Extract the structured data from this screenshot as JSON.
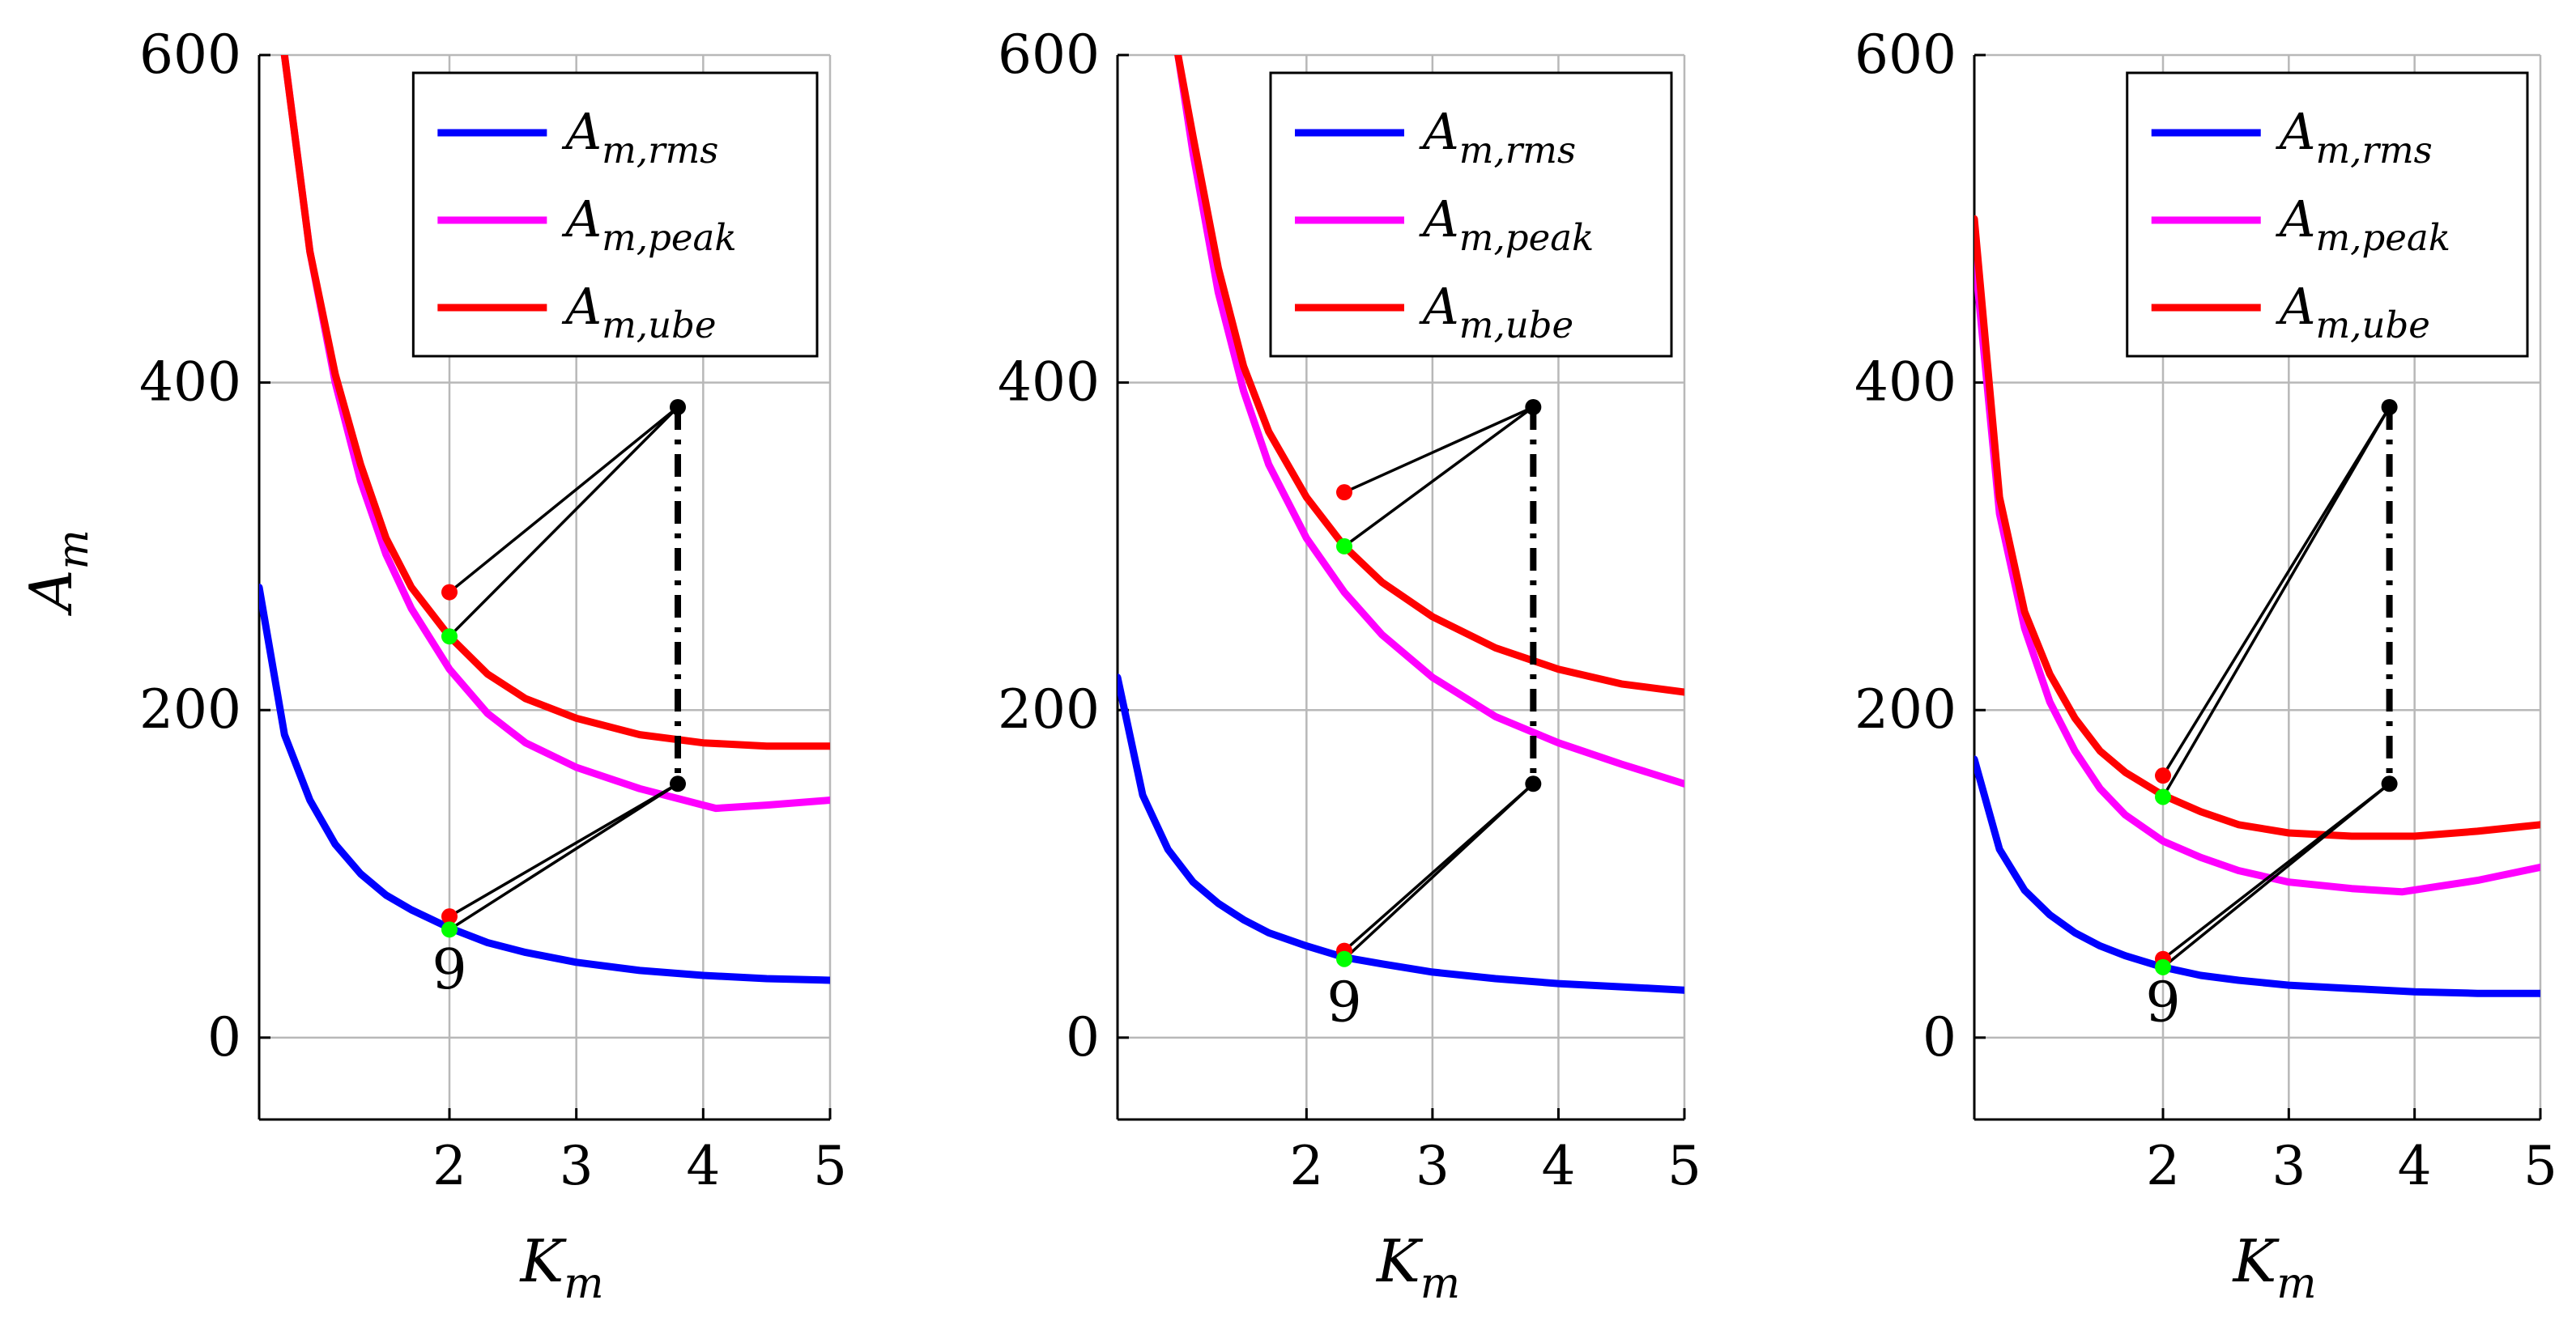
{
  "chart_data": [
    {
      "type": "line",
      "ylabel": "A_m",
      "xlabel": "K_m",
      "xlim": [
        0.5,
        5
      ],
      "ylim": [
        -50,
        600
      ],
      "xticks": [
        2,
        3,
        4,
        5
      ],
      "yticks": [
        0,
        200,
        400,
        600
      ],
      "legend_position": "top-right",
      "series": [
        {
          "name": "A_m,rms",
          "color": "#0000ff",
          "x": [
            0.5,
            0.7,
            0.9,
            1.1,
            1.3,
            1.5,
            1.7,
            2.0,
            2.3,
            2.6,
            3.0,
            3.5,
            4.0,
            4.5,
            5.0
          ],
          "y": [
            275,
            185,
            145,
            118,
            100,
            87,
            78,
            67,
            58,
            52,
            46,
            41,
            38,
            36,
            35
          ]
        },
        {
          "name": "A_m,peak",
          "color": "#ff00ff",
          "x": [
            0.7,
            0.9,
            1.1,
            1.3,
            1.5,
            1.7,
            2.0,
            2.3,
            2.6,
            3.0,
            3.5,
            4.0,
            4.1,
            4.5,
            5.0
          ],
          "y": [
            600,
            480,
            400,
            340,
            295,
            262,
            225,
            198,
            180,
            165,
            152,
            142,
            140,
            142,
            145
          ]
        },
        {
          "name": "A_m,ube",
          "color": "#ff0000",
          "x": [
            0.7,
            0.9,
            1.1,
            1.3,
            1.5,
            1.7,
            2.0,
            2.3,
            2.6,
            3.0,
            3.5,
            4.0,
            4.5,
            5.0
          ],
          "y": [
            600,
            480,
            405,
            350,
            305,
            275,
            245,
            222,
            207,
            195,
            185,
            180,
            178,
            178
          ]
        }
      ],
      "markers": [
        {
          "x": 2.0,
          "y": 272,
          "color": "#ff0000"
        },
        {
          "x": 2.0,
          "y": 245,
          "color": "#00ff00"
        },
        {
          "x": 2.0,
          "y": 74,
          "color": "#ff0000"
        },
        {
          "x": 2.0,
          "y": 66,
          "color": "#00ff00"
        },
        {
          "x": 3.8,
          "y": 385,
          "color": "#000000"
        },
        {
          "x": 3.8,
          "y": 155,
          "color": "#000000"
        }
      ],
      "connectors": [
        {
          "from": [
            2.0,
            272
          ],
          "to": [
            3.8,
            385
          ]
        },
        {
          "from": [
            2.0,
            245
          ],
          "to": [
            3.8,
            385
          ]
        },
        {
          "from": [
            2.0,
            74
          ],
          "to": [
            3.8,
            155
          ]
        },
        {
          "from": [
            2.0,
            66
          ],
          "to": [
            3.8,
            155
          ]
        }
      ],
      "dashed_link": {
        "x": 3.8,
        "y1": 385,
        "y2": 155
      },
      "annotation": {
        "text": "9",
        "x": 2.0,
        "y": 30
      }
    },
    {
      "type": "line",
      "ylabel": "",
      "xlabel": "K_m",
      "xlim": [
        0.5,
        5
      ],
      "ylim": [
        -50,
        600
      ],
      "xticks": [
        2,
        3,
        4,
        5
      ],
      "yticks": [
        0,
        200,
        400,
        600
      ],
      "legend_position": "top-right",
      "series": [
        {
          "name": "A_m,rms",
          "color": "#0000ff",
          "x": [
            0.5,
            0.7,
            0.9,
            1.1,
            1.3,
            1.5,
            1.7,
            2.0,
            2.3,
            2.6,
            3.0,
            3.5,
            4.0,
            4.5,
            5.0
          ],
          "y": [
            220,
            148,
            115,
            95,
            82,
            72,
            64,
            56,
            49,
            45,
            40,
            36,
            33,
            31,
            29
          ]
        },
        {
          "name": "A_m,peak",
          "color": "#ff00ff",
          "x": [
            0.98,
            1.1,
            1.3,
            1.5,
            1.7,
            2.0,
            2.3,
            2.6,
            3.0,
            3.5,
            4.0,
            4.5,
            5.0
          ],
          "y": [
            600,
            540,
            455,
            395,
            350,
            305,
            272,
            246,
            220,
            196,
            180,
            167,
            155
          ]
        },
        {
          "name": "A_m,ube",
          "color": "#ff0000",
          "x": [
            0.98,
            1.1,
            1.3,
            1.5,
            1.7,
            2.0,
            2.3,
            2.6,
            3.0,
            3.5,
            4.0,
            4.5,
            5.0
          ],
          "y": [
            600,
            550,
            470,
            410,
            370,
            330,
            300,
            278,
            257,
            238,
            225,
            216,
            211
          ]
        }
      ],
      "markers": [
        {
          "x": 2.3,
          "y": 333,
          "color": "#ff0000"
        },
        {
          "x": 2.3,
          "y": 300,
          "color": "#00ff00"
        },
        {
          "x": 2.3,
          "y": 53,
          "color": "#ff0000"
        },
        {
          "x": 2.3,
          "y": 48,
          "color": "#00ff00"
        },
        {
          "x": 3.8,
          "y": 385,
          "color": "#000000"
        },
        {
          "x": 3.8,
          "y": 155,
          "color": "#000000"
        }
      ],
      "connectors": [
        {
          "from": [
            2.3,
            333
          ],
          "to": [
            3.8,
            385
          ]
        },
        {
          "from": [
            2.3,
            300
          ],
          "to": [
            3.8,
            385
          ]
        },
        {
          "from": [
            2.3,
            53
          ],
          "to": [
            3.8,
            155
          ]
        },
        {
          "from": [
            2.3,
            48
          ],
          "to": [
            3.8,
            155
          ]
        }
      ],
      "dashed_link": {
        "x": 3.8,
        "y1": 385,
        "y2": 155
      },
      "annotation": {
        "text": "9",
        "x": 2.3,
        "y": 10
      }
    },
    {
      "type": "line",
      "ylabel": "",
      "xlabel": "K_m",
      "xlim": [
        0.5,
        5
      ],
      "ylim": [
        -50,
        600
      ],
      "xticks": [
        2,
        3,
        4,
        5
      ],
      "yticks": [
        0,
        200,
        400,
        600
      ],
      "legend_position": "top-right",
      "series": [
        {
          "name": "A_m,rms",
          "color": "#0000ff",
          "x": [
            0.5,
            0.7,
            0.9,
            1.1,
            1.3,
            1.5,
            1.7,
            2.0,
            2.3,
            2.6,
            3.0,
            3.5,
            4.0,
            4.5,
            5.0
          ],
          "y": [
            170,
            115,
            90,
            75,
            64,
            56,
            50,
            43,
            38,
            35,
            32,
            30,
            28,
            27,
            27
          ]
        },
        {
          "name": "A_m,peak",
          "color": "#ff00ff",
          "x": [
            0.5,
            0.7,
            0.9,
            1.1,
            1.3,
            1.5,
            1.7,
            2.0,
            2.3,
            2.6,
            3.0,
            3.5,
            3.9,
            4.5,
            5.0
          ],
          "y": [
            480,
            320,
            250,
            205,
            175,
            152,
            136,
            120,
            110,
            102,
            95,
            91,
            89,
            96,
            104
          ]
        },
        {
          "name": "A_m,ube",
          "color": "#ff0000",
          "x": [
            0.5,
            0.7,
            0.9,
            1.1,
            1.3,
            1.5,
            1.7,
            2.0,
            2.3,
            2.6,
            3.0,
            3.5,
            4.0,
            4.5,
            5.0
          ],
          "y": [
            500,
            330,
            260,
            222,
            195,
            175,
            162,
            148,
            138,
            130,
            125,
            123,
            123,
            126,
            130
          ]
        }
      ],
      "markers": [
        {
          "x": 2.0,
          "y": 160,
          "color": "#ff0000"
        },
        {
          "x": 2.0,
          "y": 147,
          "color": "#00ff00"
        },
        {
          "x": 2.0,
          "y": 48,
          "color": "#ff0000"
        },
        {
          "x": 2.0,
          "y": 43,
          "color": "#00ff00"
        },
        {
          "x": 3.8,
          "y": 385,
          "color": "#000000"
        },
        {
          "x": 3.8,
          "y": 155,
          "color": "#000000"
        }
      ],
      "connectors": [
        {
          "from": [
            2.0,
            160
          ],
          "to": [
            3.8,
            385
          ]
        },
        {
          "from": [
            2.0,
            147
          ],
          "to": [
            3.8,
            385
          ]
        },
        {
          "from": [
            2.0,
            48
          ],
          "to": [
            3.8,
            155
          ]
        },
        {
          "from": [
            2.0,
            43
          ],
          "to": [
            3.8,
            155
          ]
        }
      ],
      "dashed_link": {
        "x": 3.8,
        "y1": 385,
        "y2": 155
      },
      "annotation": {
        "text": "9",
        "x": 2.0,
        "y": 10
      }
    }
  ]
}
